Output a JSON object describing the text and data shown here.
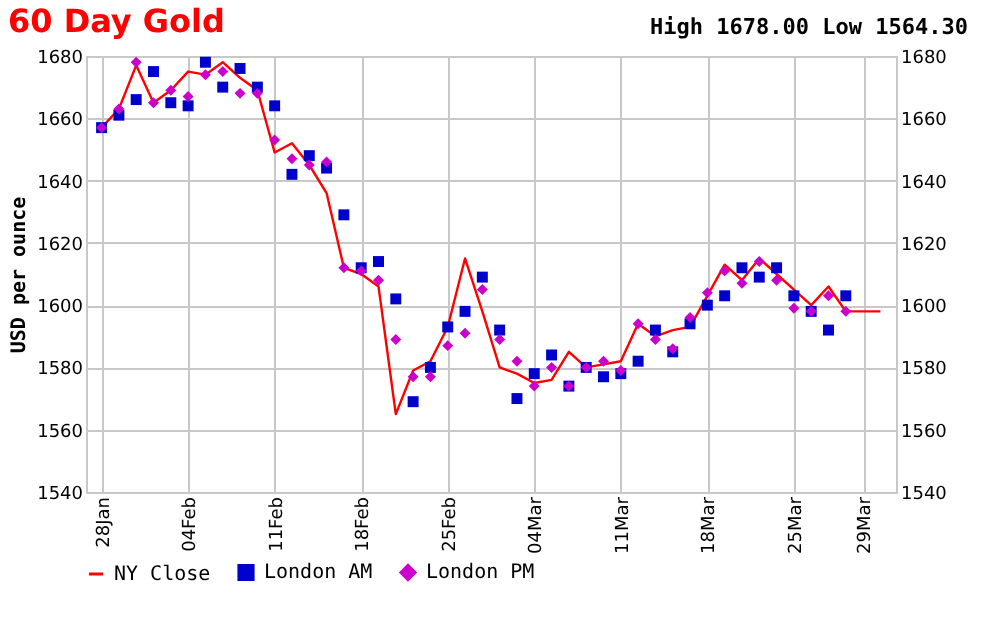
{
  "chart_data": {
    "type": "line",
    "title": "60 Day Gold",
    "subtitle": "High 1678.00 Low 1564.30",
    "ylabel": "USD per ounce",
    "categories": [
      "28Jan",
      null,
      null,
      null,
      null,
      "04Feb",
      null,
      null,
      null,
      null,
      "11Feb",
      null,
      null,
      null,
      null,
      "18Feb",
      null,
      null,
      null,
      null,
      "25Feb",
      null,
      null,
      null,
      null,
      "04Mar",
      null,
      null,
      null,
      null,
      "11Mar",
      null,
      null,
      null,
      null,
      "18Mar",
      null,
      null,
      null,
      null,
      "25Mar",
      null,
      null,
      null,
      "29Mar",
      null
    ],
    "ylim": [
      1540,
      1680
    ],
    "yticks": [
      1540,
      1560,
      1580,
      1600,
      1620,
      1640,
      1660,
      1680
    ],
    "y2lim": [
      1540,
      1680
    ],
    "y2ticks": [
      1540,
      1560,
      1580,
      1600,
      1620,
      1640,
      1660,
      1680
    ],
    "grid": true,
    "legend": "bottom",
    "series": [
      {
        "name": "NY Close",
        "type": "line",
        "marker": "none",
        "color": "#ff0000",
        "values": [
          1657,
          1663,
          1677,
          1665,
          1669,
          1675,
          1674,
          1678,
          1673,
          1669,
          1649,
          1652,
          1645,
          1636,
          1612,
          1610,
          1606,
          1565,
          1579,
          1582,
          1593,
          1615,
          1598,
          1580,
          1578,
          1575,
          1576,
          1585,
          1580,
          1581,
          1582,
          1594,
          1590,
          1592,
          1593,
          1603,
          1613,
          1608,
          1615,
          1610,
          1605,
          1600,
          1606,
          1598,
          1598,
          1598
        ]
      },
      {
        "name": "London AM",
        "type": "scatter",
        "marker": "square",
        "color": "#0000cc",
        "values": [
          1657,
          1661,
          1666,
          1675,
          1665,
          1664,
          1678,
          1670,
          1676,
          1670,
          1664,
          1642,
          1648,
          1644,
          1629,
          1612,
          1614,
          1602,
          1569,
          1580,
          1593,
          1598,
          1609,
          1592,
          1570,
          1578,
          1584,
          1574,
          1580,
          1577,
          1578,
          1582,
          1592,
          1585,
          1594,
          1600,
          1603,
          1612,
          1609,
          1612,
          1603,
          1598,
          1592,
          1603,
          null,
          null
        ]
      },
      {
        "name": "London PM",
        "type": "scatter",
        "marker": "diamond",
        "color": "#cc00cc",
        "axis": "y2",
        "values": [
          1657,
          1663,
          1678,
          1665,
          1669,
          1667,
          1674,
          1675,
          1668,
          1668,
          1653,
          1647,
          1645,
          1646,
          1612,
          1611,
          1608,
          1589,
          1577,
          1577,
          1587,
          1591,
          1605,
          1589,
          1582,
          1574,
          1580,
          1574,
          1580,
          1582,
          1579,
          1594,
          1589,
          1586,
          1596,
          1604,
          1611,
          1607,
          1614,
          1608,
          1599,
          1598,
          1603,
          1598,
          null,
          null
        ]
      }
    ]
  }
}
